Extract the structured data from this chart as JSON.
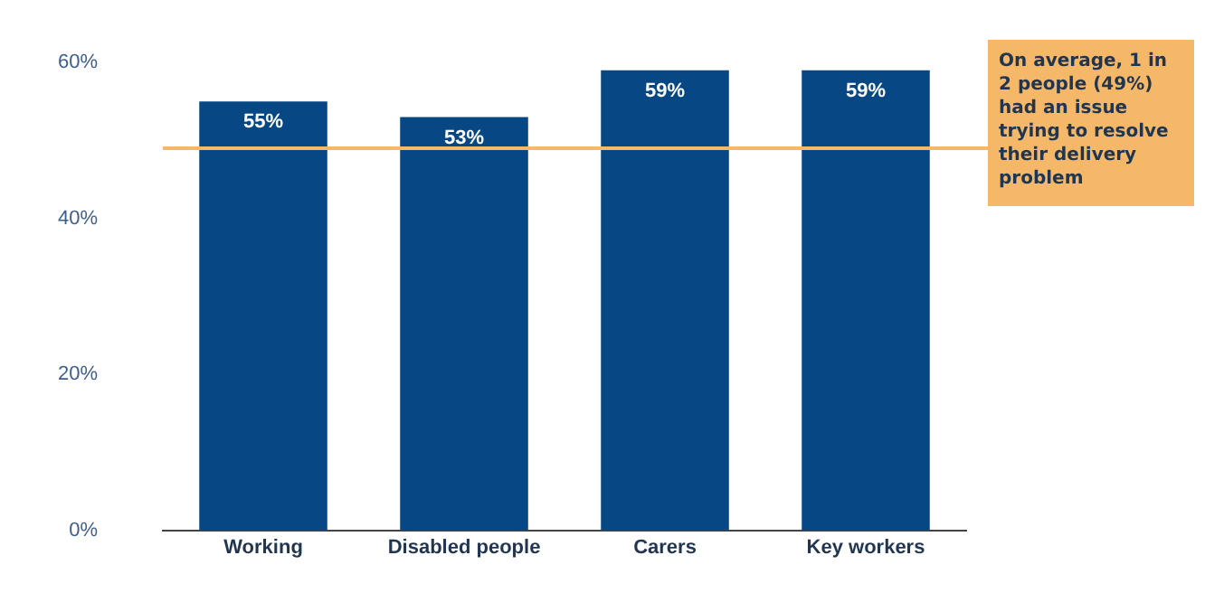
{
  "chart_data": {
    "type": "bar",
    "categories": [
      "Working",
      "Disabled people",
      "Carers",
      "Key workers"
    ],
    "values": [
      55,
      53,
      59,
      59
    ],
    "color": "#064784",
    "value_labels": [
      "55%",
      "53%",
      "59%",
      "59%"
    ],
    "ylim": [
      0,
      60
    ],
    "yticks": [
      {
        "value": 0,
        "label": "0%"
      },
      {
        "value": 20,
        "label": "20%"
      },
      {
        "value": 40,
        "label": "40%"
      },
      {
        "value": 60,
        "label": "60%"
      }
    ],
    "grid": false,
    "legend": false,
    "ref_lines": [
      {
        "axis": "y",
        "value": 49,
        "label": "On average, 1 in 2 people (49%) had an issue trying to resolve their delivery problem",
        "color": "#f5b869"
      }
    ]
  }
}
